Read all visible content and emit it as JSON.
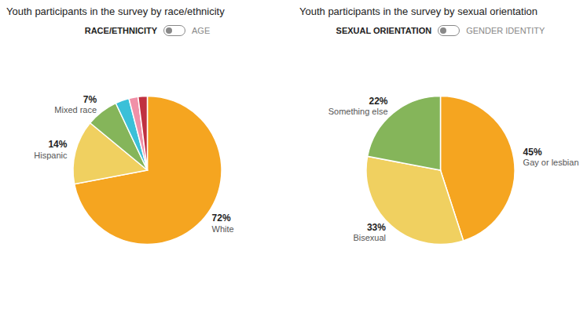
{
  "chart_data": [
    {
      "type": "pie",
      "title": "Youth participants in the survey by race/ethnicity",
      "categories": [
        "White",
        "Hispanic",
        "Mixed race",
        null,
        null,
        null
      ],
      "values": [
        72,
        14,
        7,
        3,
        2,
        2
      ],
      "value_labels": [
        "72%",
        "14%",
        "7%",
        null,
        null,
        null
      ],
      "colors": [
        "#f5a520",
        "#f0d060",
        "#85b55a",
        "#3bc0d8",
        "#f090a8",
        "#c03040"
      ],
      "data_labels": true,
      "annotations": [
        "RACE/ETHNICITY",
        "AGE"
      ]
    },
    {
      "type": "pie",
      "title": "Youth participants in the survey by sexual orientation",
      "categories": [
        "Gay or lesbian",
        "Bisexual",
        "Something else"
      ],
      "values": [
        45,
        33,
        22
      ],
      "value_labels": [
        "45%",
        "33%",
        "22%"
      ],
      "colors": [
        "#f5a520",
        "#f0d060",
        "#85b55a"
      ],
      "data_labels": true,
      "annotations": [
        "SEXUAL ORIENTATION",
        "GENDER IDENTITY"
      ]
    }
  ]
}
